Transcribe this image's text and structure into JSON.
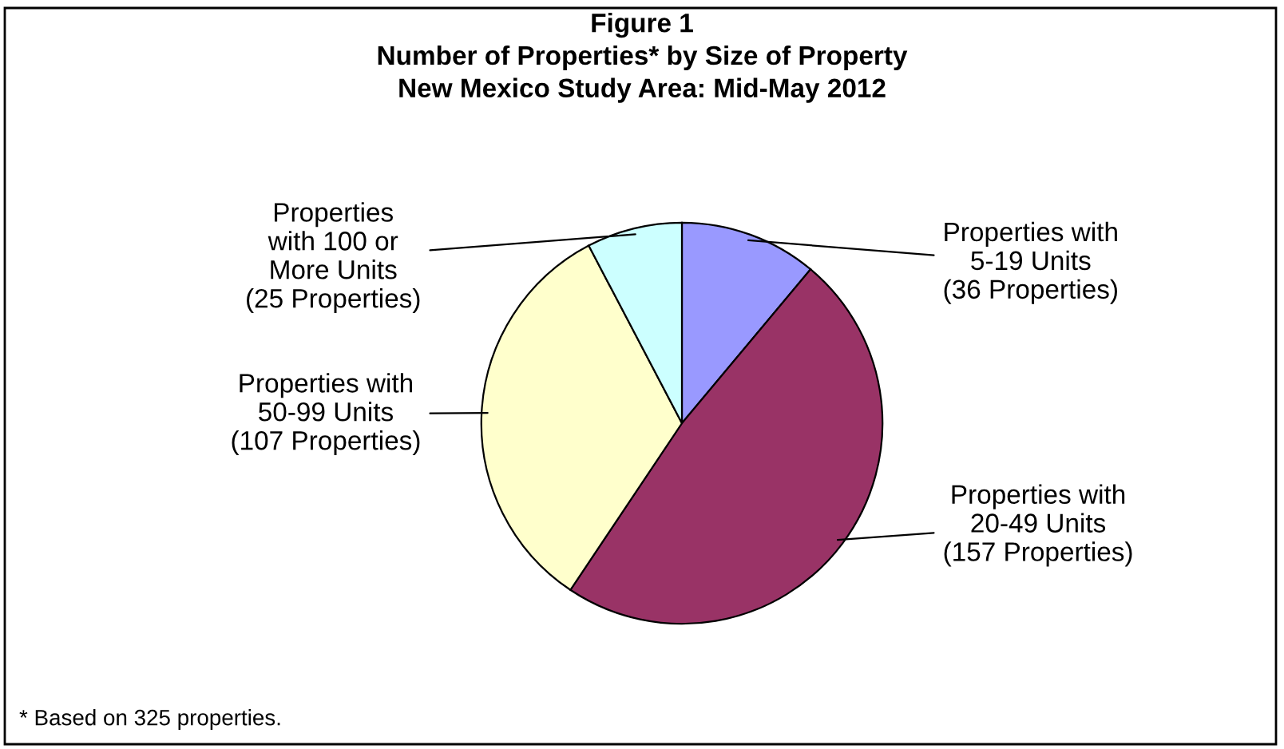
{
  "chart_data": {
    "type": "pie",
    "title": "Figure 1\nNumber of Properties* by Size of Property\nNew Mexico Study Area: Mid-May 2012",
    "categories": [
      "Properties with\n5-19 Units\n(36 Properties)",
      "Properties with\n20-49 Units\n(157 Properties)",
      "Properties with\n50-99 Units\n(107 Properties)",
      "Properties\nwith 100 or\nMore Units\n(25 Properties)"
    ],
    "values": [
      36,
      157,
      107,
      25
    ],
    "colors": [
      "#9999ff",
      "#993366",
      "#ffffcc",
      "#ccffff"
    ],
    "annotations": [
      "* Based on 325 properties."
    ]
  }
}
